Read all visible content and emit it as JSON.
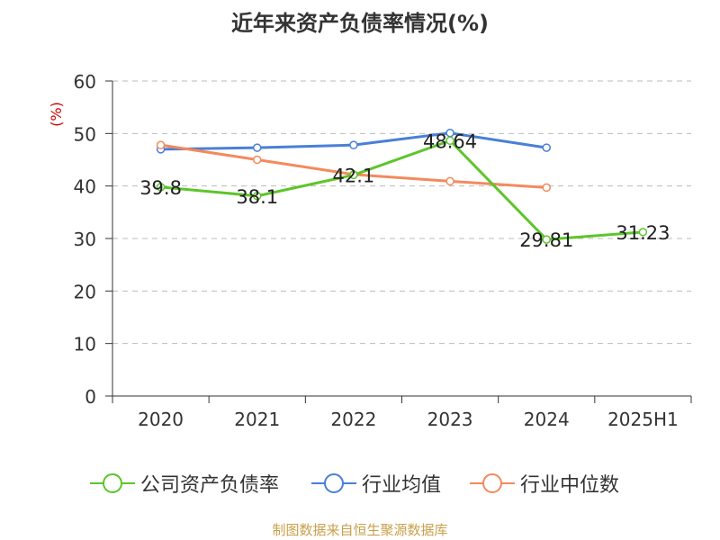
{
  "title": "近年来资产负债率情况(%)",
  "source": "制图数据来自恒生聚源数据库",
  "colors": {
    "company": "#5dc52a",
    "industry_avg": "#4a7fd6",
    "industry_median": "#f38a5c",
    "ylabel": "#cc0000",
    "source": "#c8a04a"
  },
  "chart_data": {
    "type": "line",
    "ylabel": "(%)",
    "xlabel": "",
    "ylim": [
      0,
      60
    ],
    "yticks": [
      0,
      10,
      20,
      30,
      40,
      50,
      60
    ],
    "grid": true,
    "legend_position": "bottom",
    "categories": [
      "2020",
      "2021",
      "2022",
      "2023",
      "2024",
      "2025H1"
    ],
    "series": [
      {
        "name": "公司资产负债率",
        "color": "#5dc52a",
        "values": [
          39.8,
          38.1,
          42.1,
          48.64,
          29.81,
          31.23
        ],
        "labels": [
          "39.8",
          "38.1",
          "42.1",
          "48.64",
          "29.81",
          "31.23"
        ]
      },
      {
        "name": "行业均值",
        "color": "#4a7fd6",
        "values": [
          47.0,
          47.3,
          47.8,
          50.1,
          47.3,
          null
        ]
      },
      {
        "name": "行业中位数",
        "color": "#f38a5c",
        "values": [
          47.8,
          45.0,
          42.2,
          40.9,
          39.7,
          null
        ]
      }
    ]
  }
}
